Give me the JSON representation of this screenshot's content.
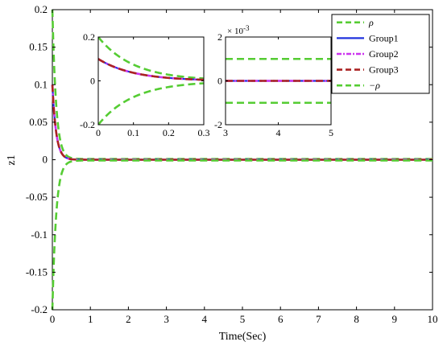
{
  "chart_data": {
    "type": "line",
    "xlabel": "Time(Sec)",
    "ylabel": "z1",
    "xlim": [
      0,
      10
    ],
    "ylim": [
      -0.2,
      0.2
    ],
    "xticks": [
      "0",
      "1",
      "2",
      "3",
      "4",
      "5",
      "6",
      "7",
      "8",
      "9",
      "10"
    ],
    "yticks": [
      "-0.2",
      "-0.15",
      "-0.1",
      "-0.05",
      "0",
      "0.05",
      "0.1",
      "0.15",
      "0.2"
    ],
    "grid": false,
    "legend_position": "top-right",
    "decay_rate": 10,
    "series": [
      {
        "name": "ρ",
        "color": "#55cc33",
        "style": "dash",
        "y0": 0.2,
        "yinf": 0.001
      },
      {
        "name": "Group1",
        "color": "#2233dd",
        "style": "solid",
        "y0": 0.1,
        "yinf": 0
      },
      {
        "name": "Group2",
        "color": "#cc33ee",
        "style": "dashdot",
        "y0": 0.1,
        "yinf": 0
      },
      {
        "name": "Group3",
        "color": "#aa2222",
        "style": "dash",
        "y0": 0.1,
        "yinf": 0
      },
      {
        "name": "−ρ",
        "color": "#55cc33",
        "style": "dash",
        "y0": -0.2,
        "yinf": -0.001
      }
    ],
    "insets": [
      {
        "xlim": [
          0,
          0.3
        ],
        "ylim": [
          -0.2,
          0.2
        ],
        "xticks": [
          "0",
          "0.1",
          "0.2",
          "0.3"
        ],
        "yticks": [
          "-0.2",
          "0",
          "0.2"
        ]
      },
      {
        "xlim": [
          3,
          5
        ],
        "ylim": [
          -0.002,
          0.002
        ],
        "xticks": [
          "3",
          "4",
          "5"
        ],
        "yticks": [
          "-2",
          "0",
          "2"
        ],
        "exponent_label": "× 10",
        "exponent_power": "-3"
      }
    ]
  }
}
